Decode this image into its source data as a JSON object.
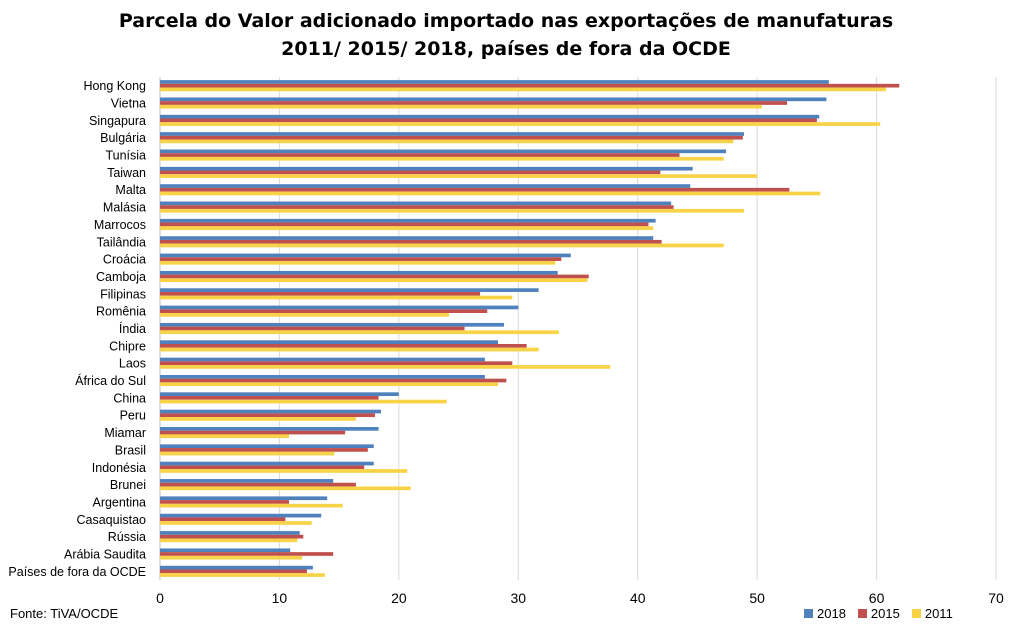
{
  "chart_data": {
    "type": "bar",
    "orientation": "horizontal",
    "title_lines": [
      "Parcela do Valor adicionado importado nas exportações de manufaturas",
      "2011/ 2015/ 2018, países de fora da OCDE"
    ],
    "source": "Fonte: TiVA/OCDE",
    "xlim": [
      0,
      70
    ],
    "xticks": [
      0,
      10,
      20,
      30,
      40,
      50,
      60,
      70
    ],
    "grid": true,
    "legend_position": "bottom-right",
    "categories": [
      "Hong Kong",
      "Vietna",
      "Singapura",
      "Bulgária",
      "Tunísia",
      "Taiwan",
      "Malta",
      "Malásia",
      "Marrocos",
      "Tailândia",
      "Croácia",
      "Camboja",
      "Filipinas",
      "Romênia",
      "Índia",
      "Chipre",
      "Laos",
      "África do Sul",
      "China",
      "Peru",
      "Miamar",
      "Brasil",
      "Indonésia",
      "Brunei",
      "Argentina",
      "Casaquistao",
      "Rússia",
      "Arábia Saudita",
      "Países de fora da OCDE"
    ],
    "series": [
      {
        "name": "2018",
        "color": "#4f81bd",
        "values": [
          56.0,
          55.8,
          55.2,
          48.9,
          47.4,
          44.6,
          44.4,
          42.8,
          41.5,
          41.3,
          34.4,
          33.3,
          31.7,
          30.0,
          28.8,
          28.3,
          27.2,
          27.2,
          20.0,
          18.5,
          18.3,
          17.9,
          17.9,
          14.5,
          14.0,
          13.5,
          11.7,
          10.9,
          12.8
        ]
      },
      {
        "name": "2015",
        "color": "#c0504d",
        "values": [
          61.9,
          52.5,
          55.0,
          48.8,
          43.5,
          41.9,
          52.7,
          43.0,
          40.9,
          42.0,
          33.6,
          35.9,
          26.8,
          27.4,
          25.5,
          30.7,
          29.5,
          29.0,
          18.3,
          18.0,
          15.5,
          17.4,
          17.1,
          16.4,
          10.8,
          10.5,
          12.0,
          14.5,
          12.3
        ]
      },
      {
        "name": "2011",
        "color": "#f9d347",
        "values": [
          60.8,
          50.4,
          60.3,
          48.0,
          47.2,
          50.0,
          55.3,
          48.9,
          41.3,
          47.2,
          33.1,
          35.8,
          29.5,
          24.2,
          33.4,
          31.7,
          37.7,
          28.3,
          24.0,
          16.4,
          10.8,
          14.6,
          20.7,
          21.0,
          15.3,
          12.7,
          11.5,
          11.9,
          13.8
        ]
      }
    ]
  }
}
